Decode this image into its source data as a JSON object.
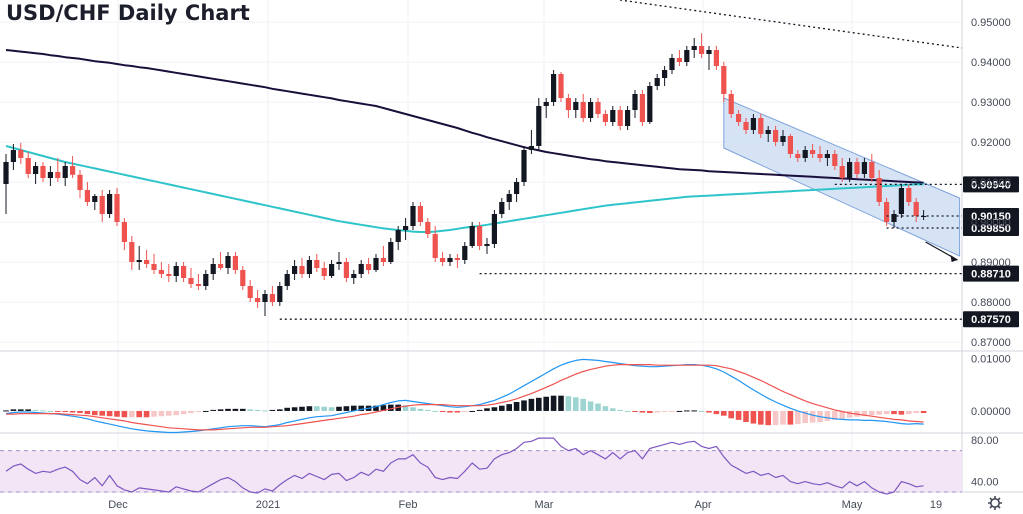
{
  "chart_data": {
    "type": "candlestick",
    "title": "USD/CHF Daily Chart",
    "price_ylim": [
      0.868,
      0.9555
    ],
    "price_ticks": [
      "0.95000",
      "0.94000",
      "0.93000",
      "0.92000",
      "0.91000",
      "0.90000",
      "0.89000",
      "0.88000",
      "0.87000"
    ],
    "levels": [
      {
        "label": "0.90940",
        "value": 0.9094
      },
      {
        "label": "0.90150",
        "value": 0.9015
      },
      {
        "label": "0.89850",
        "value": 0.8985
      },
      {
        "label": "0.88710",
        "value": 0.8871
      },
      {
        "label": "0.87570",
        "value": 0.8757
      }
    ],
    "macd_ticks": [
      "0.01000",
      "0.00000"
    ],
    "rsi_ticks": [
      "80.00",
      "40.00"
    ],
    "x_labels": [
      "Dec",
      "2021",
      "Feb",
      "Mar",
      "Apr",
      "May",
      "19"
    ],
    "ohlc": [
      [
        0.9095,
        0.917,
        0.902,
        0.915
      ],
      [
        0.915,
        0.9195,
        0.913,
        0.918
      ],
      [
        0.918,
        0.9198,
        0.9145,
        0.916
      ],
      [
        0.916,
        0.9175,
        0.911,
        0.912
      ],
      [
        0.912,
        0.915,
        0.9095,
        0.914
      ],
      [
        0.914,
        0.915,
        0.91,
        0.911
      ],
      [
        0.911,
        0.914,
        0.909,
        0.9125
      ],
      [
        0.9125,
        0.916,
        0.91,
        0.911
      ],
      [
        0.911,
        0.915,
        0.909,
        0.914
      ],
      [
        0.914,
        0.9165,
        0.911,
        0.9118
      ],
      [
        0.9118,
        0.913,
        0.906,
        0.908
      ],
      [
        0.908,
        0.91,
        0.904,
        0.905
      ],
      [
        0.905,
        0.907,
        0.903,
        0.9065
      ],
      [
        0.9065,
        0.908,
        0.9,
        0.902
      ],
      [
        0.902,
        0.908,
        0.901,
        0.907
      ],
      [
        0.907,
        0.9085,
        0.899,
        0.9
      ],
      [
        0.9,
        0.901,
        0.893,
        0.895
      ],
      [
        0.895,
        0.8965,
        0.888,
        0.89
      ],
      [
        0.89,
        0.894,
        0.888,
        0.8905
      ],
      [
        0.8905,
        0.893,
        0.8885,
        0.8895
      ],
      [
        0.8895,
        0.892,
        0.887,
        0.888
      ],
      [
        0.888,
        0.89,
        0.886,
        0.887
      ],
      [
        0.887,
        0.8895,
        0.885,
        0.8865
      ],
      [
        0.8865,
        0.89,
        0.885,
        0.889
      ],
      [
        0.889,
        0.89,
        0.885,
        0.886
      ],
      [
        0.886,
        0.8885,
        0.8835,
        0.8845
      ],
      [
        0.8845,
        0.887,
        0.883,
        0.884
      ],
      [
        0.884,
        0.888,
        0.883,
        0.887
      ],
      [
        0.887,
        0.891,
        0.8855,
        0.8895
      ],
      [
        0.8895,
        0.8925,
        0.888,
        0.8885
      ],
      [
        0.8885,
        0.8925,
        0.887,
        0.8915
      ],
      [
        0.8915,
        0.8925,
        0.887,
        0.888
      ],
      [
        0.888,
        0.889,
        0.883,
        0.884
      ],
      [
        0.884,
        0.8855,
        0.88,
        0.881
      ],
      [
        0.881,
        0.883,
        0.8785,
        0.88
      ],
      [
        0.88,
        0.883,
        0.8765,
        0.882
      ],
      [
        0.882,
        0.884,
        0.879,
        0.88
      ],
      [
        0.88,
        0.885,
        0.879,
        0.884
      ],
      [
        0.884,
        0.888,
        0.883,
        0.887
      ],
      [
        0.887,
        0.8905,
        0.8855,
        0.889
      ],
      [
        0.889,
        0.891,
        0.886,
        0.887
      ],
      [
        0.887,
        0.8915,
        0.886,
        0.8905
      ],
      [
        0.8905,
        0.892,
        0.8875,
        0.8885
      ],
      [
        0.8885,
        0.89,
        0.8855,
        0.8865
      ],
      [
        0.8865,
        0.8905,
        0.886,
        0.8895
      ],
      [
        0.8895,
        0.8925,
        0.888,
        0.89
      ],
      [
        0.89,
        0.891,
        0.885,
        0.886
      ],
      [
        0.886,
        0.888,
        0.8845,
        0.887
      ],
      [
        0.887,
        0.8905,
        0.886,
        0.8895
      ],
      [
        0.8895,
        0.891,
        0.887,
        0.888
      ],
      [
        0.888,
        0.892,
        0.8875,
        0.891
      ],
      [
        0.891,
        0.894,
        0.889,
        0.89
      ],
      [
        0.89,
        0.896,
        0.8895,
        0.895
      ],
      [
        0.895,
        0.899,
        0.893,
        0.898
      ],
      [
        0.898,
        0.901,
        0.8955,
        0.899
      ],
      [
        0.899,
        0.905,
        0.898,
        0.904
      ],
      [
        0.904,
        0.905,
        0.899,
        0.9
      ],
      [
        0.9,
        0.901,
        0.896,
        0.897
      ],
      [
        0.897,
        0.899,
        0.89,
        0.891
      ],
      [
        0.891,
        0.8925,
        0.889,
        0.89
      ],
      [
        0.89,
        0.892,
        0.889,
        0.891
      ],
      [
        0.891,
        0.892,
        0.8885,
        0.8905
      ],
      [
        0.8905,
        0.895,
        0.8895,
        0.894
      ],
      [
        0.894,
        0.9,
        0.8935,
        0.899
      ],
      [
        0.899,
        0.9,
        0.893,
        0.894
      ],
      [
        0.894,
        0.896,
        0.892,
        0.8945
      ],
      [
        0.8945,
        0.903,
        0.8935,
        0.902
      ],
      [
        0.902,
        0.906,
        0.901,
        0.905
      ],
      [
        0.905,
        0.908,
        0.903,
        0.907
      ],
      [
        0.907,
        0.911,
        0.905,
        0.91
      ],
      [
        0.91,
        0.919,
        0.909,
        0.918
      ],
      [
        0.918,
        0.923,
        0.917,
        0.919
      ],
      [
        0.919,
        0.931,
        0.918,
        0.929
      ],
      [
        0.929,
        0.931,
        0.926,
        0.93
      ],
      [
        0.93,
        0.938,
        0.929,
        0.937
      ],
      [
        0.937,
        0.9375,
        0.93,
        0.931
      ],
      [
        0.931,
        0.932,
        0.926,
        0.928
      ],
      [
        0.928,
        0.931,
        0.926,
        0.93
      ],
      [
        0.93,
        0.932,
        0.925,
        0.926
      ],
      [
        0.926,
        0.931,
        0.925,
        0.93
      ],
      [
        0.93,
        0.931,
        0.926,
        0.927
      ],
      [
        0.927,
        0.928,
        0.924,
        0.925
      ],
      [
        0.925,
        0.929,
        0.924,
        0.928
      ],
      [
        0.928,
        0.929,
        0.923,
        0.924
      ],
      [
        0.924,
        0.929,
        0.923,
        0.928
      ],
      [
        0.928,
        0.933,
        0.926,
        0.932
      ],
      [
        0.932,
        0.933,
        0.924,
        0.925
      ],
      [
        0.925,
        0.935,
        0.9245,
        0.934
      ],
      [
        0.934,
        0.937,
        0.933,
        0.936
      ],
      [
        0.936,
        0.939,
        0.934,
        0.938
      ],
      [
        0.938,
        0.942,
        0.937,
        0.941
      ],
      [
        0.941,
        0.943,
        0.939,
        0.94
      ],
      [
        0.94,
        0.944,
        0.939,
        0.943
      ],
      [
        0.943,
        0.946,
        0.941,
        0.944
      ],
      [
        0.944,
        0.9472,
        0.941,
        0.942
      ],
      [
        0.942,
        0.944,
        0.938,
        0.943
      ],
      [
        0.943,
        0.944,
        0.938,
        0.939
      ],
      [
        0.939,
        0.94,
        0.93,
        0.932
      ],
      [
        0.932,
        0.933,
        0.926,
        0.927
      ],
      [
        0.927,
        0.928,
        0.924,
        0.925
      ],
      [
        0.925,
        0.926,
        0.922,
        0.923
      ],
      [
        0.923,
        0.927,
        0.922,
        0.926
      ],
      [
        0.926,
        0.927,
        0.921,
        0.922
      ],
      [
        0.922,
        0.924,
        0.92,
        0.923
      ],
      [
        0.923,
        0.924,
        0.919,
        0.92
      ],
      [
        0.92,
        0.923,
        0.919,
        0.9215
      ],
      [
        0.9215,
        0.922,
        0.916,
        0.917
      ],
      [
        0.917,
        0.918,
        0.915,
        0.916
      ],
      [
        0.916,
        0.919,
        0.915,
        0.918
      ],
      [
        0.918,
        0.9195,
        0.916,
        0.917
      ],
      [
        0.917,
        0.919,
        0.915,
        0.916
      ],
      [
        0.916,
        0.918,
        0.914,
        0.917
      ],
      [
        0.917,
        0.918,
        0.913,
        0.914
      ],
      [
        0.914,
        0.916,
        0.91,
        0.911
      ],
      [
        0.911,
        0.916,
        0.91,
        0.915
      ],
      [
        0.915,
        0.916,
        0.911,
        0.912
      ],
      [
        0.912,
        0.916,
        0.911,
        0.915
      ],
      [
        0.915,
        0.917,
        0.91,
        0.911
      ],
      [
        0.911,
        0.913,
        0.904,
        0.905
      ],
      [
        0.905,
        0.906,
        0.899,
        0.9
      ],
      [
        0.9,
        0.903,
        0.8985,
        0.902
      ],
      [
        0.902,
        0.9094,
        0.901,
        0.9085
      ],
      [
        0.9085,
        0.9094,
        0.904,
        0.905
      ],
      [
        0.905,
        0.906,
        0.9,
        0.9015
      ],
      [
        0.9015,
        0.903,
        0.9005,
        0.9015
      ]
    ],
    "sma_slow": [
      0.943,
      0.9428,
      0.9426,
      0.9424,
      0.9422,
      0.942,
      0.9417,
      0.9415,
      0.9412,
      0.941,
      0.9408,
      0.9405,
      0.9402,
      0.94,
      0.9398,
      0.9395,
      0.9392,
      0.939,
      0.9387,
      0.9385,
      0.9382,
      0.9379,
      0.9376,
      0.9373,
      0.937,
      0.9367,
      0.9364,
      0.9361,
      0.9358,
      0.9355,
      0.9352,
      0.9349,
      0.9346,
      0.9343,
      0.934,
      0.9337,
      0.9333,
      0.933,
      0.9327,
      0.9324,
      0.9321,
      0.9318,
      0.9315,
      0.9312,
      0.9309,
      0.9305,
      0.9302,
      0.9299,
      0.9296,
      0.9293,
      0.929,
      0.9285,
      0.928,
      0.9275,
      0.927,
      0.9265,
      0.926,
      0.9255,
      0.925,
      0.9245,
      0.924,
      0.9235,
      0.9229,
      0.9223,
      0.9218,
      0.9212,
      0.9207,
      0.9202,
      0.9197,
      0.9192,
      0.9187,
      0.9183,
      0.9179,
      0.9175,
      0.9172,
      0.9169,
      0.9166,
      0.9163,
      0.916,
      0.9157,
      0.9155,
      0.9152,
      0.915,
      0.9148,
      0.9146,
      0.9144,
      0.9142,
      0.914,
      0.9138,
      0.9136,
      0.9134,
      0.9132,
      0.9131,
      0.913,
      0.9129,
      0.9127,
      0.9126,
      0.9125,
      0.9124,
      0.9123,
      0.9122,
      0.9121,
      0.912,
      0.9119,
      0.9118,
      0.9117,
      0.9116,
      0.9115,
      0.9114,
      0.9113,
      0.9112,
      0.9111,
      0.911,
      0.9109,
      0.9108,
      0.9107,
      0.9106,
      0.9105,
      0.9104,
      0.9103,
      0.9102,
      0.9101,
      0.91,
      0.9099,
      0.9098
    ],
    "sma_fast": [
      0.919,
      0.9185,
      0.918,
      0.9175,
      0.917,
      0.9165,
      0.916,
      0.9155,
      0.915,
      0.9146,
      0.9142,
      0.9138,
      0.9134,
      0.913,
      0.9126,
      0.9122,
      0.9118,
      0.9114,
      0.911,
      0.9106,
      0.9102,
      0.9098,
      0.9094,
      0.909,
      0.9086,
      0.9082,
      0.9078,
      0.9074,
      0.907,
      0.9066,
      0.9062,
      0.9058,
      0.9054,
      0.905,
      0.9046,
      0.9042,
      0.9038,
      0.9034,
      0.903,
      0.9026,
      0.9022,
      0.9018,
      0.9014,
      0.901,
      0.9006,
      0.9002,
      0.8999,
      0.8996,
      0.8993,
      0.899,
      0.8987,
      0.8984,
      0.8982,
      0.898,
      0.8978,
      0.8976,
      0.8975,
      0.8975,
      0.8976,
      0.8978,
      0.898,
      0.8983,
      0.8986,
      0.8988,
      0.899,
      0.8993,
      0.8996,
      0.8999,
      0.9002,
      0.9005,
      0.9008,
      0.9011,
      0.9014,
      0.9017,
      0.902,
      0.9023,
      0.9026,
      0.9029,
      0.9032,
      0.9035,
      0.9038,
      0.9041,
      0.9043,
      0.9045,
      0.9047,
      0.9049,
      0.9051,
      0.9053,
      0.9055,
      0.9057,
      0.9059,
      0.9061,
      0.9063,
      0.9064,
      0.9065,
      0.9066,
      0.9067,
      0.9068,
      0.9069,
      0.907,
      0.9071,
      0.9072,
      0.9073,
      0.9074,
      0.9075,
      0.9076,
      0.9077,
      0.9078,
      0.9079,
      0.908,
      0.9081,
      0.9082,
      0.9083,
      0.9084,
      0.9085,
      0.9086,
      0.9087,
      0.9088,
      0.9089,
      0.909,
      0.9091,
      0.9092,
      0.9093,
      0.9094,
      0.9094
    ],
    "macd_ylim": [
      -0.004,
      0.0112
    ],
    "macd_line": [
      -0.0005,
      -0.0003,
      -0.0002,
      -0.0002,
      -0.0003,
      -0.0004,
      -0.0005,
      -0.0006,
      -0.0008,
      -0.001,
      -0.0012,
      -0.0015,
      -0.0019,
      -0.0022,
      -0.0025,
      -0.0028,
      -0.0031,
      -0.0034,
      -0.0036,
      -0.0038,
      -0.0039,
      -0.004,
      -0.0041,
      -0.0041,
      -0.004,
      -0.0039,
      -0.0038,
      -0.0036,
      -0.0034,
      -0.0032,
      -0.003,
      -0.0029,
      -0.0028,
      -0.0028,
      -0.0029,
      -0.003,
      -0.0028,
      -0.0026,
      -0.0022,
      -0.0019,
      -0.0016,
      -0.0013,
      -0.0011,
      -0.001,
      -0.0009,
      -0.0006,
      -0.0003,
      0.0,
      0.0003,
      0.0005,
      0.0008,
      0.0012,
      0.0016,
      0.0019,
      0.002,
      0.0018,
      0.0016,
      0.0014,
      0.0012,
      0.001,
      0.0008,
      0.0007,
      0.0008,
      0.001,
      0.0012,
      0.0016,
      0.002,
      0.0026,
      0.0032,
      0.004,
      0.0048,
      0.0056,
      0.0064,
      0.0072,
      0.008,
      0.0087,
      0.0092,
      0.0096,
      0.0098,
      0.0097,
      0.0096,
      0.0094,
      0.0092,
      0.009,
      0.0088,
      0.0086,
      0.0085,
      0.0084,
      0.0084,
      0.0085,
      0.0086,
      0.0087,
      0.0088,
      0.0088,
      0.0087,
      0.0084,
      0.008,
      0.0074,
      0.0066,
      0.0058,
      0.0049,
      0.004,
      0.0032,
      0.0024,
      0.0017,
      0.0011,
      0.0005,
      0.0,
      -0.0004,
      -0.0008,
      -0.0011,
      -0.0013,
      -0.0015,
      -0.0016,
      -0.0017,
      -0.0017,
      -0.0018,
      -0.0018,
      -0.0019,
      -0.002,
      -0.0022,
      -0.0024,
      -0.0025,
      -0.0024,
      -0.0025
    ],
    "macd_signal": [
      -0.0006,
      -0.0006,
      -0.0005,
      -0.0005,
      -0.0005,
      -0.0005,
      -0.0005,
      -0.0005,
      -0.0006,
      -0.0007,
      -0.0008,
      -0.0009,
      -0.0011,
      -0.0013,
      -0.0015,
      -0.0017,
      -0.0019,
      -0.0022,
      -0.0024,
      -0.0026,
      -0.0028,
      -0.003,
      -0.0032,
      -0.0033,
      -0.0034,
      -0.0035,
      -0.0036,
      -0.0036,
      -0.0036,
      -0.0035,
      -0.0034,
      -0.0033,
      -0.0032,
      -0.0031,
      -0.0031,
      -0.0031,
      -0.003,
      -0.0029,
      -0.0028,
      -0.0026,
      -0.0024,
      -0.0022,
      -0.002,
      -0.0018,
      -0.0016,
      -0.0014,
      -0.0012,
      -0.001,
      -0.0007,
      -0.0005,
      -0.0002,
      0.0001,
      0.0004,
      0.0007,
      0.0009,
      0.0011,
      0.0012,
      0.0012,
      0.0012,
      0.0012,
      0.0011,
      0.001,
      0.001,
      0.001,
      0.001,
      0.0011,
      0.0013,
      0.0016,
      0.0019,
      0.0023,
      0.0028,
      0.0033,
      0.0039,
      0.0045,
      0.0051,
      0.0058,
      0.0064,
      0.007,
      0.0075,
      0.0079,
      0.0082,
      0.0085,
      0.0087,
      0.0088,
      0.0088,
      0.0088,
      0.0088,
      0.0088,
      0.0087,
      0.0087,
      0.0087,
      0.0087,
      0.0087,
      0.0087,
      0.0087,
      0.0087,
      0.0086,
      0.0083,
      0.008,
      0.0075,
      0.007,
      0.0064,
      0.0058,
      0.0051,
      0.0044,
      0.0037,
      0.0031,
      0.0025,
      0.0019,
      0.0014,
      0.001,
      0.0006,
      0.0002,
      -0.0001,
      -0.0004,
      -0.0006,
      -0.0008,
      -0.001,
      -0.0012,
      -0.0014,
      -0.0016,
      -0.0017,
      -0.0019,
      -0.002,
      -0.0021
    ],
    "rsi_ylim": [
      30,
      86
    ],
    "rsi": [
      50,
      55,
      57,
      52,
      48,
      50,
      49,
      52,
      54,
      50,
      42,
      38,
      44,
      36,
      46,
      36,
      32,
      30,
      34,
      33,
      32,
      31,
      30,
      35,
      33,
      31,
      30,
      34,
      38,
      42,
      44,
      40,
      34,
      30,
      29,
      33,
      31,
      37,
      42,
      46,
      43,
      48,
      45,
      42,
      47,
      48,
      41,
      44,
      49,
      46,
      52,
      50,
      58,
      62,
      62,
      66,
      58,
      54,
      44,
      42,
      44,
      43,
      50,
      58,
      52,
      53,
      62,
      66,
      68,
      72,
      78,
      79,
      82,
      82,
      82,
      74,
      70,
      72,
      66,
      70,
      66,
      62,
      68,
      62,
      68,
      70,
      62,
      72,
      74,
      76,
      78,
      76,
      78,
      79,
      74,
      72,
      74,
      64,
      56,
      52,
      48,
      50,
      46,
      48,
      44,
      46,
      40,
      38,
      40,
      38,
      37,
      39,
      36,
      34,
      40,
      36,
      40,
      34,
      30,
      28,
      30,
      40,
      38,
      35,
      36
    ],
    "colors": {
      "up": "#131722",
      "down": "#ef5350",
      "sma_slow": "#1a0e3a",
      "sma_fast": "#2ec4c9",
      "channel_fill": "#c7d9f2",
      "channel_line": "#7ca3db",
      "macd": "#2196f3",
      "signal": "#ef5350",
      "hist_pos": "#131722",
      "hist_pos_fading": "#9bd4d0",
      "hist_neg": "#ef5350",
      "hist_neg_fading": "#f7c6c6",
      "rsi": "#7e57c2",
      "rsi_band": "#f3e5f5",
      "level_box": "#131722"
    }
  }
}
